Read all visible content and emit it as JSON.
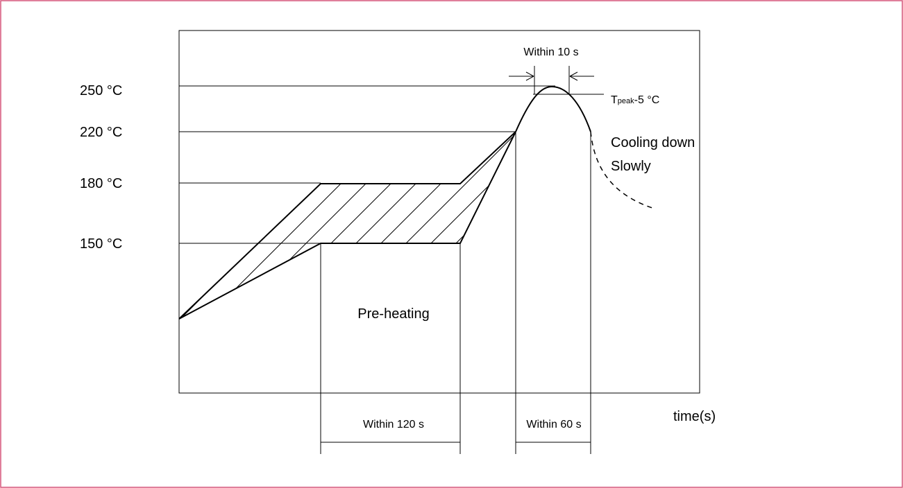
{
  "y_labels": [
    "250 °C",
    "220 °C",
    "180 °C",
    "150 °C"
  ],
  "peak_window": "Within 10 s",
  "peak_tolerance": {
    "symbol": "T",
    "subscript": "peak",
    "suffix": "-5 °C"
  },
  "cooling": [
    "Cooling down",
    "Slowly"
  ],
  "preheat_label": "Pre-heating",
  "preheat_window": "Within 120 s",
  "reflow_window": "Within 60 s",
  "x_axis_label": "time(s)"
}
